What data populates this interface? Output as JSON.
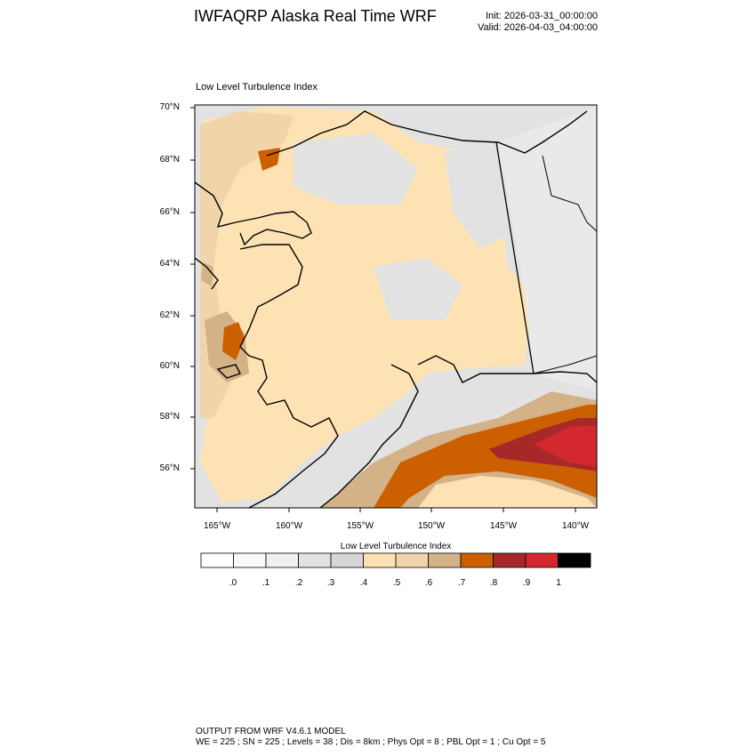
{
  "header": {
    "title": "IWFAQRP Alaska Real Time WRF",
    "init": "Init: 2026-03-31_00:00:00",
    "valid": "Valid: 2026-04-03_04:00:00"
  },
  "map": {
    "field_title": "Low Level Turbulence Index",
    "lat_labels": [
      "70°N",
      "68°N",
      "66°N",
      "64°N",
      "62°N",
      "60°N",
      "58°N",
      "56°N"
    ],
    "lon_labels": [
      "165°W",
      "160°W",
      "155°W",
      "150°W",
      "145°W",
      "140°W"
    ]
  },
  "colorbar": {
    "title": "Low Level Turbulence Index",
    "labels": [
      ".0",
      ".1",
      ".2",
      ".3",
      ".4",
      ".5",
      ".6",
      ".7",
      ".8",
      ".9",
      "1"
    ],
    "colors": [
      "#ffffff",
      "#f9f9f9",
      "#f0f0f0",
      "#e2e2e2",
      "#d6d6d6",
      "#fde3b4",
      "#f1d4a9",
      "#d4b288",
      "#cc6000",
      "#a8282a",
      "#d42830",
      "#000000"
    ]
  },
  "footer": {
    "line1": "OUTPUT FROM WRF V4.6.1 MODEL",
    "line2": "WE = 225 ; SN = 225 ; Levels = 38 ; Dis = 8km ; Phys Opt = 8 ; PBL Opt = 1 ; Cu Opt = 5"
  }
}
